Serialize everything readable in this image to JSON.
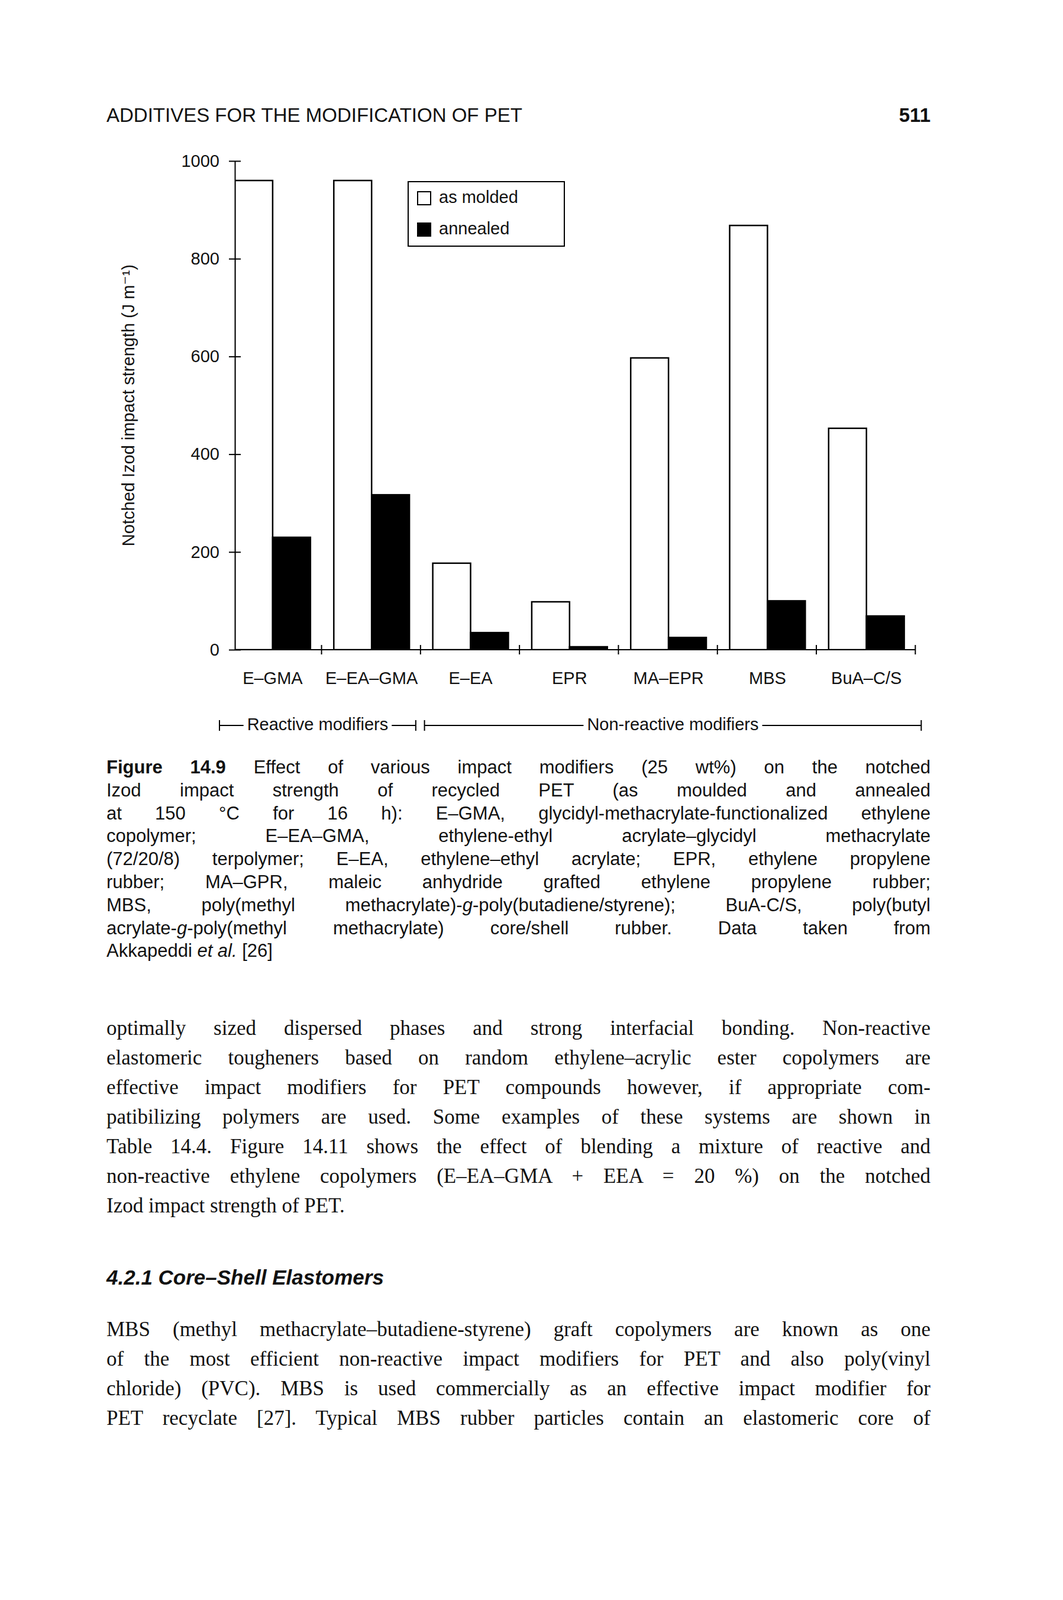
{
  "header": {
    "title": "ADDITIVES FOR THE MODIFICATION OF PET",
    "page": "511"
  },
  "chart_data": {
    "type": "bar",
    "y_label": "Notched Izod impact strength (J m⁻¹)",
    "categories": [
      "E–GMA",
      "E–EA–GMA",
      "E–EA",
      "EPR",
      "MA–EPR",
      "MBS",
      "BuA–C/S"
    ],
    "series": [
      {
        "name": "as molded",
        "color": "#ffffff",
        "values": [
          960,
          960,
          177,
          98,
          597,
          868,
          453
        ]
      },
      {
        "name": "annealed",
        "color": "#000000",
        "values": [
          230,
          317,
          35,
          6,
          25,
          100,
          69
        ]
      }
    ],
    "ylim": [
      0,
      1000
    ],
    "yticks": [
      0,
      200,
      400,
      600,
      800,
      1000
    ],
    "legend": "top",
    "annotations": [
      {
        "text": "Reactive modifiers",
        "first": "E–GMA",
        "last": "E–EA–GMA"
      },
      {
        "text": "Non-reactive modifiers",
        "first": "E–EA",
        "last": "BuA–C/S"
      }
    ]
  },
  "caption": {
    "lines": [
      [
        {
          "text": "Figure 14.9",
          "style": "bold"
        },
        {
          "text": " Effect of various impact modifiers (25 wt%) on the notched",
          "style": "normal"
        }
      ],
      "Izod impact strength of recycled PET (as moulded and annealed",
      "at 150 °C for 16 h): E–GMA, glycidyl-methacrylate-functionalized ethylene",
      "copolymer; E–EA–GMA, ethylene-ethyl acrylate–glycidyl methacrylate",
      "(72/20/8) terpolymer; E–EA, ethylene–ethyl acrylate; EPR, ethylene propylene",
      "rubber; MA–GPR, maleic anhydride grafted ethylene propylene rubber;",
      [
        {
          "text": "MBS, poly(methyl methacrylate)-",
          "style": "normal"
        },
        {
          "text": "g",
          "style": "italic"
        },
        {
          "text": "-poly(butadiene/styrene); BuA-C/S, poly(butyl",
          "style": "normal"
        }
      ],
      [
        {
          "text": "acrylate-",
          "style": "normal"
        },
        {
          "text": "g",
          "style": "italic"
        },
        {
          "text": "-poly(methyl methacrylate) core/shell rubber. Data taken from",
          "style": "normal"
        }
      ],
      [
        {
          "text": "Akkapeddi ",
          "style": "normal"
        },
        {
          "text": "et al.",
          "style": "italic"
        },
        {
          "text": " [26]",
          "style": "normal"
        }
      ]
    ]
  },
  "body": [
    {
      "type": "paragraph",
      "lines": [
        "optimally sized dispersed phases and strong interfacial bonding. Non-reactive",
        "elastomeric tougheners based on random ethylene–acrylic ester copolymers are",
        "effective impact modifiers for PET compounds however, if appropriate com-",
        "patibilizing polymers are used. Some examples of these systems are shown in",
        "Table 14.4. Figure 14.11 shows the effect of blending a mixture of reactive and",
        "non-reactive ethylene copolymers (E–EA–GMA + EEA = 20 %) on the notched",
        "Izod impact strength of PET."
      ]
    },
    {
      "type": "heading",
      "text": "4.2.1 Core–Shell Elastomers"
    },
    {
      "type": "paragraph",
      "lines": [
        "MBS (methyl methacrylate–butadiene-styrene) graft copolymers are known as one",
        "of the most efficient non-reactive impact modifiers for PET and also poly(vinyl",
        "chloride) (PVC). MBS is used commercially as an effective impact modifier for",
        "PET recyclate [27]. Typical MBS rubber particles contain an elastomeric core of"
      ]
    }
  ]
}
